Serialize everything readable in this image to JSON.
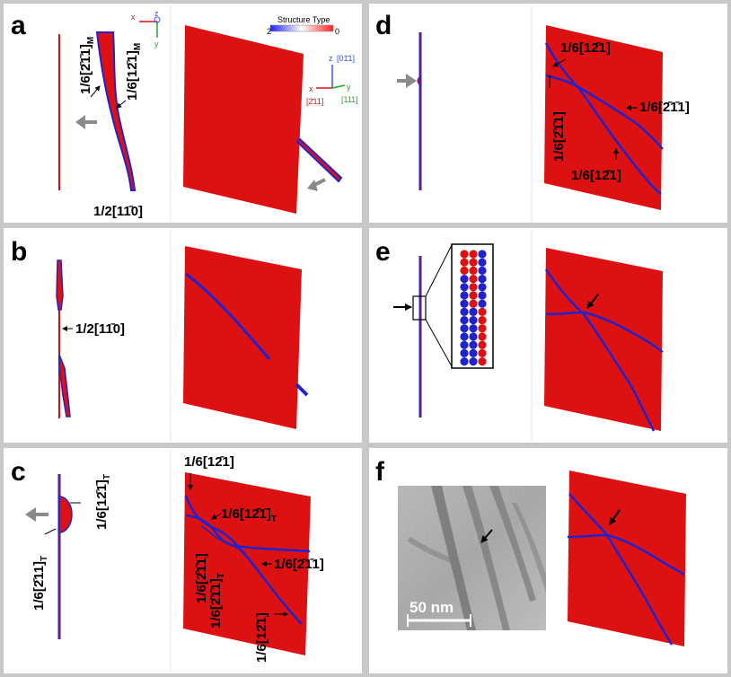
{
  "panels": {
    "a": {
      "label": "a",
      "burgers_left": "1/6[2̄1̄1]",
      "burgers_left_sub": "M",
      "burgers_right": "1/6[12̄1]",
      "burgers_right_sub": "M",
      "burgers_bottom": "1/2[11̄0]",
      "legend_title": "Structure Type",
      "legend_min": "2",
      "legend_max": "0",
      "axis_z_top": "z",
      "axis_x_top": "x",
      "axis_y_top": "y",
      "axis_z": "z",
      "axis_z_dir": "[01̄1]",
      "axis_x": "x",
      "axis_x_dir": "[2̄11]",
      "axis_y": "y",
      "axis_y_dir": "[111]"
    },
    "b": {
      "label": "b",
      "burgers": "1/2[11̄0]"
    },
    "c": {
      "label": "c",
      "left_vert_1": "1/6[12̄1̄]",
      "left_vert_1_sub": "T",
      "left_vert_2": "1/6[2̄11]",
      "left_vert_2_sub": "T",
      "top": "1/6[12̄1]",
      "mid": "1/6[12̄1̄]",
      "mid_sub": "T",
      "right": "1/6[2̄1̄1]",
      "vert_a": "1/6[2̄1̄1]",
      "vert_b": "1/6[2̄1̄1]",
      "vert_b_sub": "T",
      "vert_c": "1/6[12̄1]"
    },
    "d": {
      "label": "d",
      "top": "1/6[12̄1]",
      "right": "1/6[2̄1̄1]",
      "left_vert": "1/6[2̄1̄1]",
      "bottom": "1/6[12̄1]"
    },
    "e": {
      "label": "e"
    },
    "f": {
      "label": "f",
      "scale_bar": "50 nm"
    }
  },
  "colors": {
    "red": "#dd1111",
    "blue": "#2222cc",
    "gray_arrow": "#8a8a8a",
    "frame": "#c8c8c8"
  }
}
